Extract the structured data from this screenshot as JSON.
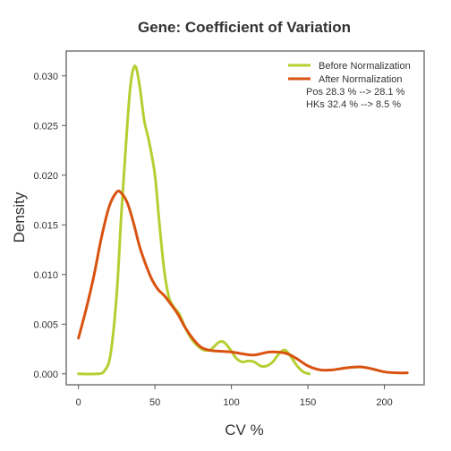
{
  "chart_data": {
    "type": "line",
    "title": "Gene: Coefficient of Variation",
    "xlabel": "CV %",
    "ylabel": "Density",
    "xlim": [
      -8,
      226
    ],
    "ylim": [
      -0.0011,
      0.0325
    ],
    "x_ticks": [
      0,
      50,
      100,
      150,
      200
    ],
    "x_tick_labels": [
      "0",
      "50",
      "100",
      "150",
      "200"
    ],
    "y_ticks": [
      0,
      0.005,
      0.01,
      0.015,
      0.02,
      0.025,
      0.03
    ],
    "y_tick_labels": [
      "0.000",
      "0.005",
      "0.010",
      "0.015",
      "0.020",
      "0.025",
      "0.030"
    ],
    "grid": false,
    "legend_position": "top-right",
    "legend_notes": [
      "Pos 28.3 % --> 28.1 %",
      "HKs 32.4 % --> 8.5 %"
    ],
    "series": [
      {
        "name": "Before Normalization",
        "color": "#b5cf32",
        "points": [
          [
            0,
            0.0
          ],
          [
            12,
            0.0
          ],
          [
            17,
            0.0003
          ],
          [
            21,
            0.002
          ],
          [
            25,
            0.008
          ],
          [
            28,
            0.016
          ],
          [
            31,
            0.023
          ],
          [
            34,
            0.029
          ],
          [
            37,
            0.031
          ],
          [
            40,
            0.029
          ],
          [
            43,
            0.0255
          ],
          [
            46,
            0.0235
          ],
          [
            50,
            0.02
          ],
          [
            53,
            0.015
          ],
          [
            56,
            0.0105
          ],
          [
            59,
            0.0078
          ],
          [
            62,
            0.0068
          ],
          [
            66,
            0.006
          ],
          [
            70,
            0.0046
          ],
          [
            74,
            0.0035
          ],
          [
            78,
            0.0028
          ],
          [
            82,
            0.0024
          ],
          [
            86,
            0.0024
          ],
          [
            89,
            0.0028
          ],
          [
            92,
            0.0032
          ],
          [
            95,
            0.0032
          ],
          [
            99,
            0.0025
          ],
          [
            103,
            0.0016
          ],
          [
            107,
            0.0012
          ],
          [
            111,
            0.0013
          ],
          [
            115,
            0.0012
          ],
          [
            119,
            0.0008
          ],
          [
            123,
            0.0008
          ],
          [
            127,
            0.0012
          ],
          [
            131,
            0.002
          ],
          [
            135,
            0.0024
          ],
          [
            139,
            0.0017
          ],
          [
            143,
            0.0008
          ],
          [
            147,
            0.0002
          ],
          [
            151,
            0.0
          ]
        ]
      },
      {
        "name": "After Normalization",
        "color": "#d95210",
        "points": [
          [
            0,
            0.0036
          ],
          [
            5,
            0.0065
          ],
          [
            10,
            0.0098
          ],
          [
            15,
            0.0137
          ],
          [
            20,
            0.0168
          ],
          [
            25,
            0.0183
          ],
          [
            28,
            0.0182
          ],
          [
            32,
            0.0172
          ],
          [
            36,
            0.0152
          ],
          [
            40,
            0.0128
          ],
          [
            44,
            0.011
          ],
          [
            48,
            0.0095
          ],
          [
            52,
            0.0085
          ],
          [
            56,
            0.0079
          ],
          [
            60,
            0.0071
          ],
          [
            65,
            0.006
          ],
          [
            70,
            0.0046
          ],
          [
            75,
            0.0035
          ],
          [
            80,
            0.0027
          ],
          [
            85,
            0.0024
          ],
          [
            90,
            0.0023
          ],
          [
            100,
            0.0022
          ],
          [
            108,
            0.002
          ],
          [
            115,
            0.0019
          ],
          [
            125,
            0.0022
          ],
          [
            135,
            0.0021
          ],
          [
            142,
            0.0016
          ],
          [
            150,
            0.0008
          ],
          [
            158,
            0.0004
          ],
          [
            166,
            0.0004
          ],
          [
            175,
            0.0006
          ],
          [
            184,
            0.0007
          ],
          [
            192,
            0.0005
          ],
          [
            200,
            0.0002
          ],
          [
            208,
            0.0001
          ],
          [
            215,
            0.0001
          ]
        ]
      }
    ]
  }
}
